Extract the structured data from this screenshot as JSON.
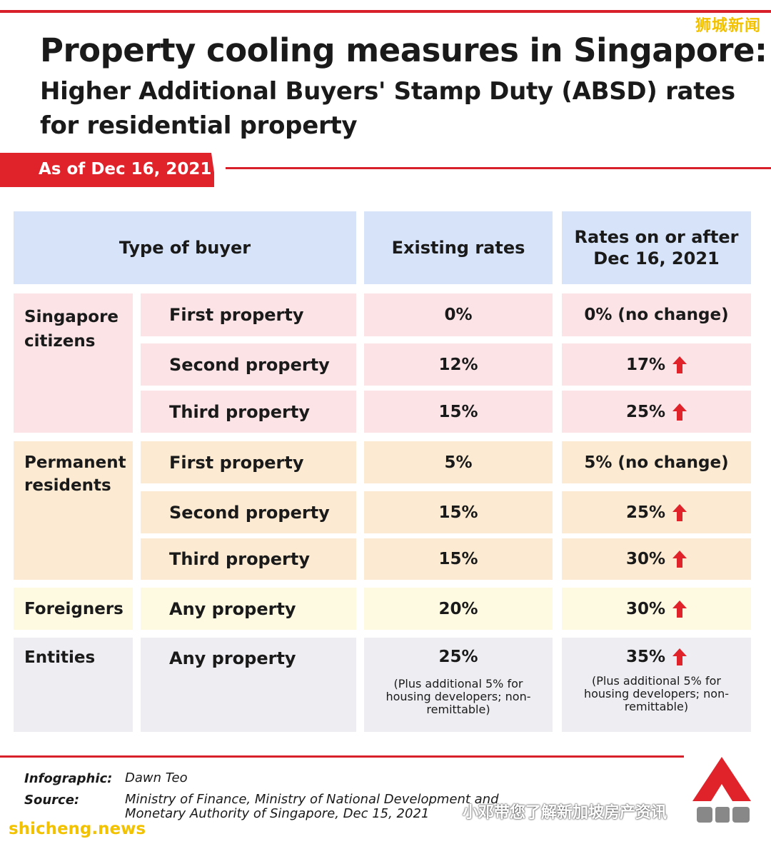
{
  "watermark_top": "狮城新闻",
  "title": "Property cooling measures in Singapore:",
  "subtitle": "Higher Additional Buyers' Stamp Duty (ABSD) rates for residential property",
  "as_of": "As of Dec 16, 2021",
  "table": {
    "headers": {
      "buyer": "Type of buyer",
      "existing": "Existing rates",
      "new_line1": "Rates on or after",
      "new_line2": "Dec 16, 2021"
    },
    "citizens": {
      "group": "Singapore citizens",
      "rows": [
        {
          "label": "First property",
          "existing": "0%",
          "new": "0% (no change)"
        },
        {
          "label": "Second property",
          "existing": "12%",
          "new": "17%"
        },
        {
          "label": "Third property",
          "existing": "15%",
          "new": "25%"
        }
      ]
    },
    "pr": {
      "group": "Permanent residents",
      "rows": [
        {
          "label": "First property",
          "existing": "5%",
          "new": "5% (no change)"
        },
        {
          "label": "Second property",
          "existing": "15%",
          "new": "25%"
        },
        {
          "label": "Third property",
          "existing": "15%",
          "new": "30%"
        }
      ]
    },
    "foreigners": {
      "group": "Foreigners",
      "label": "Any property",
      "existing": "20%",
      "new": "30%"
    },
    "entities": {
      "group": "Entities",
      "label": "Any property",
      "existing": "25%",
      "new": "35%",
      "note": "(Plus additional 5% for housing developers; non-remittable)"
    },
    "increase_icon": "red-up-arrow-icon",
    "colors": {
      "accent_red": "#d8202a",
      "citizens": "#fbe3e6",
      "pr": "#fcebd2",
      "foreigners": "#fef9e1",
      "entities": "#eeeef2",
      "header": "#d6e3f8"
    }
  },
  "footer": {
    "infographic_label": "Infographic:",
    "infographic_value": "Dawn Teo",
    "source_label": "Source:",
    "source_line1": "Ministry of Finance, Ministry of National Development and",
    "source_line2": "Monetary Authority of Singapore, Dec 15, 2021"
  },
  "watermark_wechat": "小邓带您了解新加坡房产资讯",
  "watermark_bottom": "shicheng.news",
  "logo_name": "cna-logo"
}
